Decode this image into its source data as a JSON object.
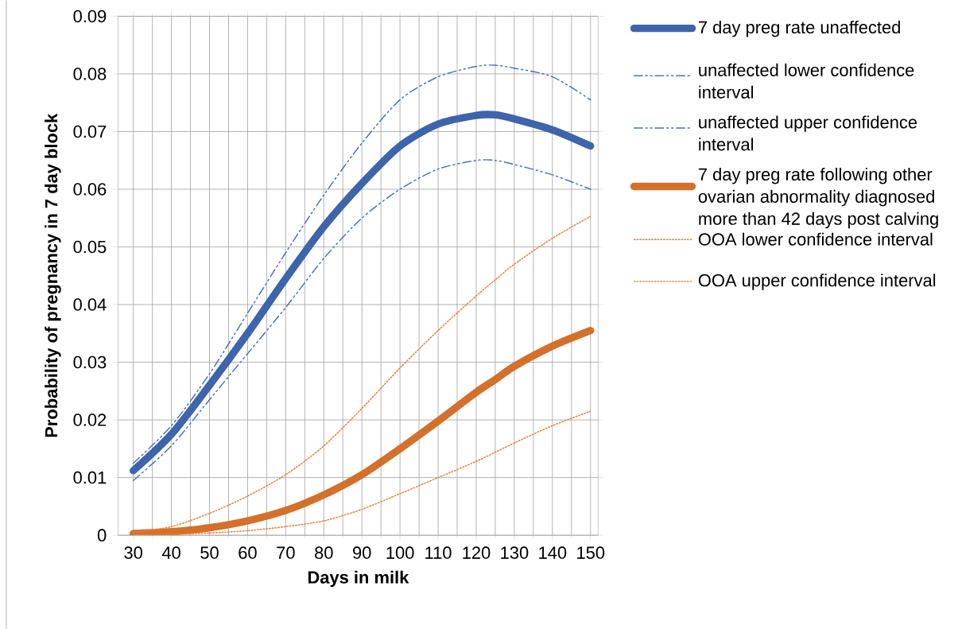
{
  "chart_data": {
    "type": "line",
    "xlabel": "Days in milk",
    "ylabel": "Probability of pregnancy in 7 day block",
    "x": [
      30,
      40,
      50,
      60,
      70,
      80,
      90,
      100,
      110,
      120,
      125,
      130,
      140,
      150
    ],
    "series": [
      {
        "name": "7 day preg rate unaffected",
        "color": "#3d64ad",
        "line_style": "solid",
        "values": [
          0.0112,
          0.0175,
          0.026,
          0.035,
          0.0445,
          0.0535,
          0.061,
          0.0675,
          0.0713,
          0.0728,
          0.0729,
          0.0722,
          0.0703,
          0.0675
        ]
      },
      {
        "name": "unaffected lower confidence interval",
        "color": "#4472c4",
        "line_style": "dashed",
        "values": [
          0.0095,
          0.0155,
          0.0235,
          0.0315,
          0.0395,
          0.048,
          0.055,
          0.06,
          0.0635,
          0.065,
          0.065,
          0.0643,
          0.0625,
          0.06
        ]
      },
      {
        "name": "unaffected upper confidence interval",
        "color": "#4472c4",
        "line_style": "dashed",
        "values": [
          0.0125,
          0.019,
          0.028,
          0.0385,
          0.049,
          0.059,
          0.068,
          0.0755,
          0.0795,
          0.0813,
          0.0815,
          0.081,
          0.0795,
          0.0755
        ]
      },
      {
        "name": "7 day preg rate following other ovarian abnormality diagnosed more than 42 days post calving",
        "color": "#d4702a",
        "line_style": "solid",
        "values": [
          0.0003,
          0.0006,
          0.0013,
          0.0025,
          0.0043,
          0.007,
          0.0105,
          0.015,
          0.0198,
          0.0248,
          0.027,
          0.0293,
          0.0328,
          0.0355
        ]
      },
      {
        "name": "OOA lower confidence interval",
        "color": "#ed7d31",
        "line_style": "dotted",
        "values": [
          0.0001,
          0.0002,
          0.0004,
          0.0008,
          0.0015,
          0.0025,
          0.0045,
          0.0072,
          0.01,
          0.0128,
          0.0144,
          0.016,
          0.019,
          0.0215
        ]
      },
      {
        "name": "OOA upper confidence interval",
        "color": "#ed7d31",
        "line_style": "dotted",
        "values": [
          0.0005,
          0.0015,
          0.0038,
          0.0068,
          0.0105,
          0.0155,
          0.022,
          0.029,
          0.0355,
          0.0415,
          0.0443,
          0.047,
          0.0515,
          0.0553
        ]
      }
    ],
    "xlim": [
      26,
      152
    ],
    "xticks": [
      30,
      40,
      50,
      60,
      70,
      80,
      90,
      100,
      110,
      120,
      130,
      140,
      150
    ],
    "ylim": [
      0,
      0.09
    ],
    "yticks": [
      0,
      0.01,
      0.02,
      0.03,
      0.04,
      0.05,
      0.06,
      0.07,
      0.08,
      0.09
    ],
    "grid": true,
    "legend": "right",
    "marker": "none"
  }
}
